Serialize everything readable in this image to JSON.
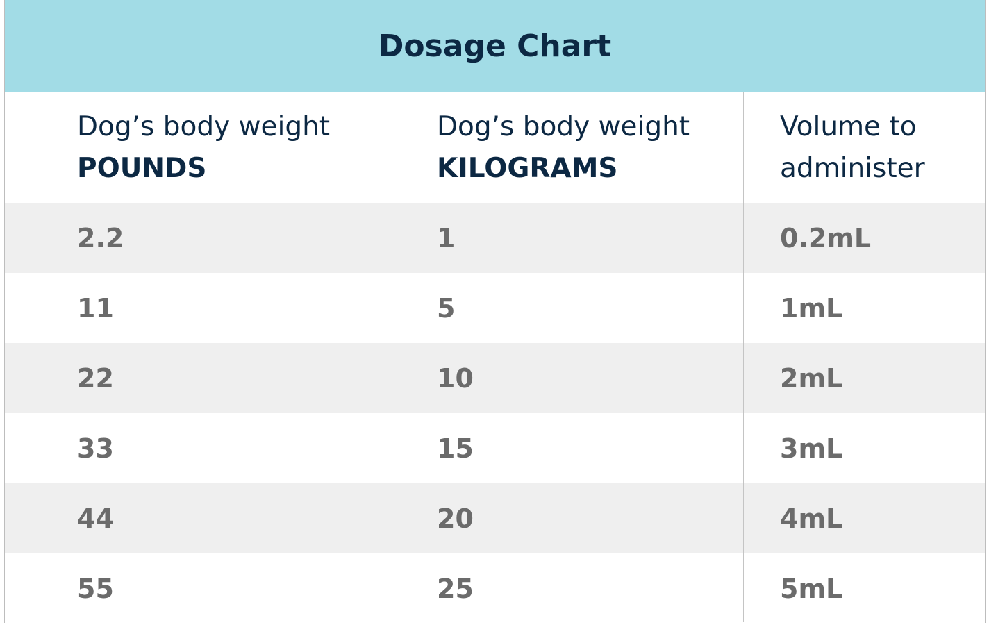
{
  "title": "Dosage Chart",
  "table": {
    "header": [
      {
        "line1": "Dog’s body weight",
        "line2": "POUNDS"
      },
      {
        "line1": "Dog’s body weight",
        "line2": "KILOGRAMS"
      },
      {
        "line1": "Volume to",
        "line2": "administer"
      }
    ],
    "rows": [
      [
        "2.2",
        "1",
        "0.2mL"
      ],
      [
        "11",
        "5",
        "1mL"
      ],
      [
        "22",
        "10",
        "2mL"
      ],
      [
        "33",
        "15",
        "3mL"
      ],
      [
        "44",
        "20",
        "4mL"
      ],
      [
        "55",
        "25",
        "5mL"
      ]
    ]
  }
}
